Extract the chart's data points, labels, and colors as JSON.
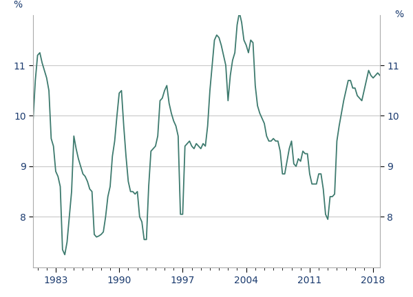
{
  "ylabel_left": "%",
  "ylabel_right": "%",
  "ylim": [
    7,
    12
  ],
  "yticks": [
    8,
    9,
    10,
    11
  ],
  "line_color": "#3d7a6e",
  "line_width": 1.3,
  "background_color": "#ffffff",
  "grid_color": "#c8c8c8",
  "tick_label_color": "#1a3a6e",
  "x_start_year": 1980.5,
  "x_end_year": 2018.75,
  "xtick_years": [
    1983,
    1990,
    1997,
    2004,
    2011,
    2018
  ],
  "data": [
    [
      1980.5,
      9.9
    ],
    [
      1980.75,
      10.7
    ],
    [
      1981.0,
      11.2
    ],
    [
      1981.25,
      11.25
    ],
    [
      1981.5,
      11.05
    ],
    [
      1981.75,
      10.9
    ],
    [
      1982.0,
      10.75
    ],
    [
      1982.25,
      10.5
    ],
    [
      1982.5,
      9.55
    ],
    [
      1982.75,
      9.4
    ],
    [
      1983.0,
      8.9
    ],
    [
      1983.25,
      8.8
    ],
    [
      1983.5,
      8.6
    ],
    [
      1983.75,
      7.35
    ],
    [
      1984.0,
      7.25
    ],
    [
      1984.25,
      7.5
    ],
    [
      1984.5,
      8.0
    ],
    [
      1984.75,
      8.5
    ],
    [
      1985.0,
      9.6
    ],
    [
      1985.25,
      9.35
    ],
    [
      1985.5,
      9.15
    ],
    [
      1985.75,
      9.0
    ],
    [
      1986.0,
      8.85
    ],
    [
      1986.25,
      8.8
    ],
    [
      1986.5,
      8.7
    ],
    [
      1986.75,
      8.55
    ],
    [
      1987.0,
      8.5
    ],
    [
      1987.25,
      7.65
    ],
    [
      1987.5,
      7.6
    ],
    [
      1987.75,
      7.62
    ],
    [
      1988.0,
      7.65
    ],
    [
      1988.25,
      7.7
    ],
    [
      1988.5,
      8.0
    ],
    [
      1988.75,
      8.4
    ],
    [
      1989.0,
      8.6
    ],
    [
      1989.25,
      9.2
    ],
    [
      1989.5,
      9.5
    ],
    [
      1989.75,
      10.0
    ],
    [
      1990.0,
      10.45
    ],
    [
      1990.25,
      10.5
    ],
    [
      1990.5,
      9.8
    ],
    [
      1990.75,
      9.2
    ],
    [
      1991.0,
      8.7
    ],
    [
      1991.25,
      8.5
    ],
    [
      1991.5,
      8.5
    ],
    [
      1991.75,
      8.45
    ],
    [
      1992.0,
      8.5
    ],
    [
      1992.25,
      8.0
    ],
    [
      1992.5,
      7.9
    ],
    [
      1992.75,
      7.55
    ],
    [
      1993.0,
      7.55
    ],
    [
      1993.25,
      8.6
    ],
    [
      1993.5,
      9.3
    ],
    [
      1993.75,
      9.35
    ],
    [
      1994.0,
      9.4
    ],
    [
      1994.25,
      9.6
    ],
    [
      1994.5,
      10.3
    ],
    [
      1994.75,
      10.35
    ],
    [
      1995.0,
      10.5
    ],
    [
      1995.25,
      10.6
    ],
    [
      1995.5,
      10.25
    ],
    [
      1995.75,
      10.05
    ],
    [
      1996.0,
      9.9
    ],
    [
      1996.25,
      9.8
    ],
    [
      1996.5,
      9.6
    ],
    [
      1996.75,
      8.05
    ],
    [
      1997.0,
      8.05
    ],
    [
      1997.25,
      9.4
    ],
    [
      1997.5,
      9.45
    ],
    [
      1997.75,
      9.5
    ],
    [
      1998.0,
      9.4
    ],
    [
      1998.25,
      9.35
    ],
    [
      1998.5,
      9.45
    ],
    [
      1998.75,
      9.4
    ],
    [
      1999.0,
      9.35
    ],
    [
      1999.25,
      9.45
    ],
    [
      1999.5,
      9.4
    ],
    [
      1999.75,
      9.8
    ],
    [
      2000.0,
      10.5
    ],
    [
      2000.25,
      11.0
    ],
    [
      2000.5,
      11.5
    ],
    [
      2000.75,
      11.6
    ],
    [
      2001.0,
      11.55
    ],
    [
      2001.25,
      11.4
    ],
    [
      2001.5,
      11.2
    ],
    [
      2001.75,
      11.0
    ],
    [
      2002.0,
      10.3
    ],
    [
      2002.25,
      10.8
    ],
    [
      2002.5,
      11.1
    ],
    [
      2002.75,
      11.25
    ],
    [
      2003.0,
      11.8
    ],
    [
      2003.25,
      12.05
    ],
    [
      2003.5,
      11.85
    ],
    [
      2003.75,
      11.5
    ],
    [
      2004.0,
      11.4
    ],
    [
      2004.25,
      11.25
    ],
    [
      2004.5,
      11.5
    ],
    [
      2004.75,
      11.45
    ],
    [
      2005.0,
      10.6
    ],
    [
      2005.25,
      10.2
    ],
    [
      2005.5,
      10.05
    ],
    [
      2005.75,
      9.95
    ],
    [
      2006.0,
      9.85
    ],
    [
      2006.25,
      9.6
    ],
    [
      2006.5,
      9.5
    ],
    [
      2006.75,
      9.5
    ],
    [
      2007.0,
      9.55
    ],
    [
      2007.25,
      9.5
    ],
    [
      2007.5,
      9.5
    ],
    [
      2007.75,
      9.3
    ],
    [
      2008.0,
      8.85
    ],
    [
      2008.25,
      8.85
    ],
    [
      2008.5,
      9.1
    ],
    [
      2008.75,
      9.35
    ],
    [
      2009.0,
      9.5
    ],
    [
      2009.25,
      9.05
    ],
    [
      2009.5,
      9.0
    ],
    [
      2009.75,
      9.15
    ],
    [
      2010.0,
      9.1
    ],
    [
      2010.25,
      9.3
    ],
    [
      2010.5,
      9.25
    ],
    [
      2010.75,
      9.25
    ],
    [
      2011.0,
      8.85
    ],
    [
      2011.25,
      8.65
    ],
    [
      2011.5,
      8.65
    ],
    [
      2011.75,
      8.65
    ],
    [
      2012.0,
      8.85
    ],
    [
      2012.25,
      8.85
    ],
    [
      2012.5,
      8.55
    ],
    [
      2012.75,
      8.05
    ],
    [
      2013.0,
      7.95
    ],
    [
      2013.25,
      8.4
    ],
    [
      2013.5,
      8.4
    ],
    [
      2013.75,
      8.45
    ],
    [
      2014.0,
      9.5
    ],
    [
      2014.25,
      9.8
    ],
    [
      2014.5,
      10.05
    ],
    [
      2014.75,
      10.3
    ],
    [
      2015.0,
      10.5
    ],
    [
      2015.25,
      10.7
    ],
    [
      2015.5,
      10.7
    ],
    [
      2015.75,
      10.55
    ],
    [
      2016.0,
      10.55
    ],
    [
      2016.25,
      10.4
    ],
    [
      2016.5,
      10.35
    ],
    [
      2016.75,
      10.3
    ],
    [
      2017.0,
      10.5
    ],
    [
      2017.25,
      10.7
    ],
    [
      2017.5,
      10.9
    ],
    [
      2017.75,
      10.8
    ],
    [
      2018.0,
      10.75
    ],
    [
      2018.25,
      10.8
    ],
    [
      2018.5,
      10.85
    ],
    [
      2018.75,
      10.8
    ]
  ]
}
